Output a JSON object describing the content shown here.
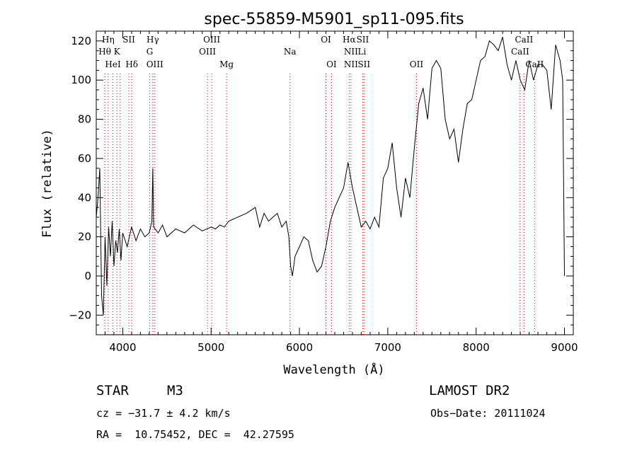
{
  "chart_data": {
    "type": "line",
    "title": "spec-55859-M5901_sp11-095.fits",
    "xlabel": "Wavelength (Å)",
    "ylabel": "Flux (relative)",
    "xlim": [
      3700,
      9100
    ],
    "ylim": [
      -30,
      125
    ],
    "xticks": [
      4000,
      5000,
      6000,
      7000,
      8000,
      9000
    ],
    "yticks": [
      -20,
      0,
      20,
      40,
      60,
      80,
      100,
      120
    ],
    "grid": false,
    "line_color": "#000000",
    "marker_line_color": "#cc0000",
    "series": [
      {
        "x": [
          3700,
          3720,
          3740,
          3760,
          3780,
          3800,
          3820,
          3840,
          3860,
          3880,
          3900,
          3920,
          3940,
          3960,
          3980,
          4000,
          4050,
          4100,
          4150,
          4200,
          4250,
          4300,
          4330,
          4340,
          4350,
          4400,
          4450,
          4500,
          4600,
          4700,
          4800,
          4900,
          5000,
          5050,
          5100,
          5150,
          5200,
          5300,
          5400,
          5500,
          5550,
          5600,
          5650,
          5700,
          5750,
          5800,
          5850,
          5880,
          5900,
          5920,
          5950,
          6000,
          6050,
          6100,
          6150,
          6200,
          6250,
          6300,
          6350,
          6400,
          6450,
          6500,
          6550,
          6580,
          6600,
          6650,
          6700,
          6750,
          6800,
          6850,
          6900,
          6950,
          7000,
          7050,
          7100,
          7150,
          7200,
          7250,
          7300,
          7350,
          7400,
          7450,
          7500,
          7550,
          7600,
          7650,
          7700,
          7750,
          7800,
          7850,
          7900,
          7950,
          8000,
          8050,
          8100,
          8150,
          8200,
          8250,
          8300,
          8350,
          8400,
          8450,
          8500,
          8550,
          8600,
          8650,
          8700,
          8750,
          8800,
          8850,
          8900,
          8950,
          8980,
          9000
        ],
        "values": [
          30,
          40,
          55,
          -10,
          -20,
          20,
          -5,
          25,
          10,
          28,
          5,
          18,
          12,
          24,
          8,
          22,
          15,
          25,
          18,
          24,
          20,
          22,
          28,
          55,
          25,
          22,
          26,
          20,
          24,
          22,
          26,
          23,
          25,
          24,
          26,
          25,
          28,
          30,
          32,
          35,
          25,
          32,
          28,
          30,
          32,
          25,
          28,
          20,
          5,
          0,
          10,
          15,
          20,
          18,
          8,
          2,
          5,
          15,
          28,
          35,
          40,
          45,
          58,
          50,
          45,
          35,
          25,
          28,
          24,
          30,
          25,
          50,
          55,
          68,
          45,
          30,
          50,
          40,
          65,
          88,
          96,
          80,
          106,
          110,
          106,
          80,
          70,
          75,
          58,
          75,
          88,
          90,
          100,
          110,
          112,
          120,
          118,
          115,
          122,
          108,
          100,
          110,
          100,
          95,
          110,
          100,
          108,
          108,
          105,
          85,
          118,
          110,
          100,
          0
        ]
      }
    ]
  },
  "line_labels": [
    {
      "text": "Hη",
      "wavelength": 3835,
      "row": 0
    },
    {
      "text": "Hθ",
      "wavelength": 3797,
      "row": 1
    },
    {
      "text": "HeI",
      "wavelength": 3889,
      "row": 2
    },
    {
      "text": "K",
      "wavelength": 3934,
      "row": 1
    },
    {
      "text": "SII",
      "wavelength": 4069,
      "row": 0
    },
    {
      "text": "Hδ",
      "wavelength": 4102,
      "row": 2
    },
    {
      "text": "Hγ",
      "wavelength": 4340,
      "row": 0
    },
    {
      "text": "G",
      "wavelength": 4305,
      "row": 1
    },
    {
      "text": "OIII",
      "wavelength": 4363,
      "row": 2
    },
    {
      "text": "OIII",
      "wavelength": 5007,
      "row": 0
    },
    {
      "text": "OIII",
      "wavelength": 4959,
      "row": 1
    },
    {
      "text": "Mg",
      "wavelength": 5175,
      "row": 2
    },
    {
      "text": "Na",
      "wavelength": 5893,
      "row": 1
    },
    {
      "text": "OI",
      "wavelength": 6300,
      "row": 0
    },
    {
      "text": "OI",
      "wavelength": 6363,
      "row": 2
    },
    {
      "text": "Hα",
      "wavelength": 6563,
      "row": 0
    },
    {
      "text": "SII",
      "wavelength": 6716,
      "row": 0
    },
    {
      "text": "NII",
      "wavelength": 6583,
      "row": 1
    },
    {
      "text": "Li",
      "wavelength": 6708,
      "row": 1
    },
    {
      "text": "NII",
      "wavelength": 6583,
      "row": 2
    },
    {
      "text": "SII",
      "wavelength": 6731,
      "row": 2
    },
    {
      "text": "OII",
      "wavelength": 7325,
      "row": 2
    },
    {
      "text": "CaII",
      "wavelength": 8542,
      "row": 0
    },
    {
      "text": "CaII",
      "wavelength": 8498,
      "row": 1
    },
    {
      "text": "CaII",
      "wavelength": 8662,
      "row": 2
    }
  ],
  "marker_lines": [
    3797,
    3835,
    3889,
    3934,
    3970,
    4069,
    4102,
    4305,
    4340,
    4363,
    4959,
    5007,
    5175,
    5893,
    6300,
    6363,
    6563,
    6583,
    6716,
    6731,
    7325,
    8498,
    8542,
    8662
  ],
  "footer": {
    "object_class": "STAR",
    "subclass": "M3",
    "survey": "LAMOST DR2",
    "cz": "cz = −31.7 ± 4.2 km/s",
    "obs_date": "Obs−Date: 20111024",
    "coords": "RA =  10.75452, DEC =  42.27595"
  }
}
